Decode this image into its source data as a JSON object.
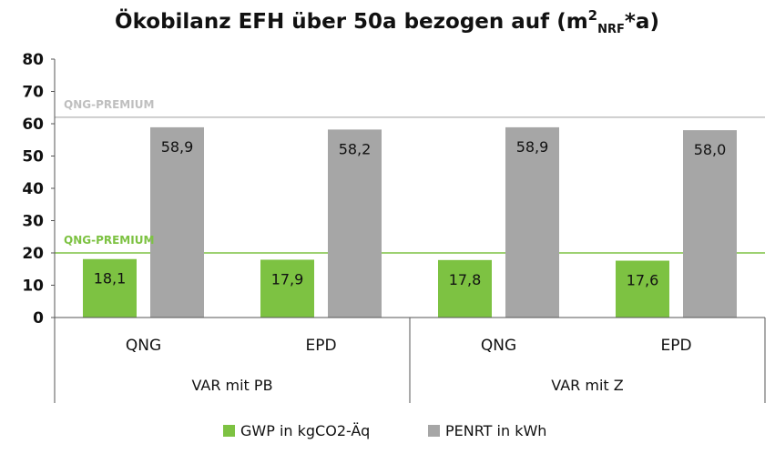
{
  "chart_data": {
    "type": "bar",
    "title": "Ökobilanz EFH über 50a bezogen auf (m²NRF*a)",
    "title_main": "Ökobilanz EFH über 50a bezogen auf (m",
    "title_sup": "2",
    "title_sub": "NRF",
    "title_end": "*a)",
    "categories": [
      "QNG",
      "EPD",
      "QNG",
      "EPD"
    ],
    "groups": [
      {
        "label": "VAR mit PB",
        "span": [
          0,
          1
        ]
      },
      {
        "label": "VAR mit Z",
        "span": [
          2,
          3
        ]
      }
    ],
    "series": [
      {
        "name": "GWP in kgCO2-Äq",
        "color": "#7dc242",
        "values": [
          18.1,
          17.9,
          17.8,
          17.6
        ],
        "labels": [
          "18,1",
          "17,9",
          "17,8",
          "17,6"
        ]
      },
      {
        "name": "PENRT in kWh",
        "color": "#a6a6a6",
        "values": [
          58.9,
          58.2,
          58.9,
          58.0
        ],
        "labels": [
          "58,9",
          "58,2",
          "58,9",
          "58,0"
        ]
      }
    ],
    "ylim": [
      0,
      80
    ],
    "yticks": [
      0,
      10,
      20,
      30,
      40,
      50,
      60,
      70,
      80
    ],
    "reference_lines": [
      {
        "label": "QNG-PREMIUM",
        "value": 62,
        "color": "#bfbfbf"
      },
      {
        "label": "QNG-PREMIUM",
        "value": 20,
        "color": "#7dc242"
      }
    ],
    "legend_position": "bottom",
    "grid": false
  }
}
